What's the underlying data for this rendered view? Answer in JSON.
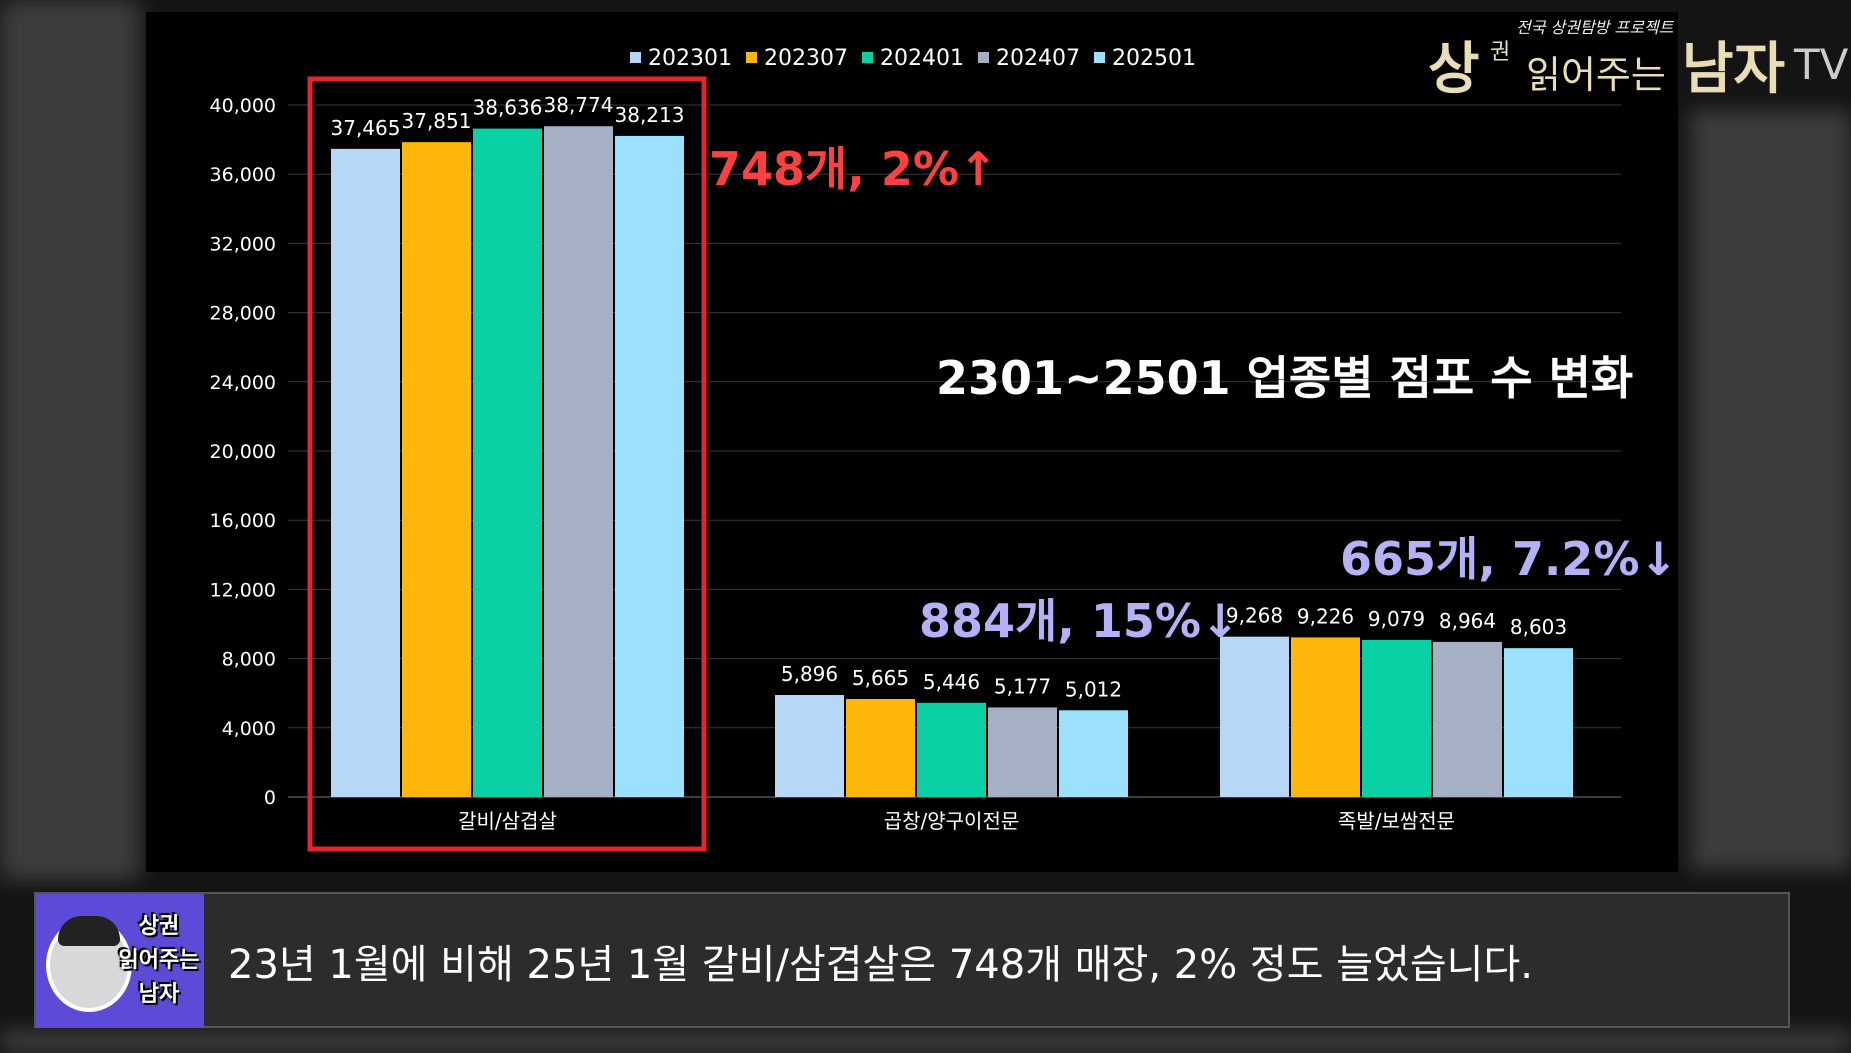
{
  "logo": {
    "tagline": "전국 상권탐방 프로젝트",
    "word1": "상",
    "word1_small": "권",
    "middle": "읽어주는",
    "word2": "남자",
    "suffix": "TV"
  },
  "subtitle_bar": {
    "avatar_label_lines": [
      "상권",
      "읽어주는",
      "남자"
    ],
    "text": "23년 1월에 비해 25년 1월 갈비/삼겹살은 748개 매장, 2% 정도 늘었습니다."
  },
  "chart_data": {
    "type": "bar",
    "title": "",
    "categories": [
      "갈비/삼겹살",
      "곱창/양구이전문",
      "족발/보쌈전문"
    ],
    "series": [
      {
        "name": "202301",
        "color": "#b6d7f5",
        "values": [
          37465,
          5896,
          9268
        ]
      },
      {
        "name": "202307",
        "color": "#ffb60a",
        "values": [
          37851,
          5665,
          9226
        ]
      },
      {
        "name": "202401",
        "color": "#0ad1a3",
        "values": [
          38636,
          5446,
          9079
        ]
      },
      {
        "name": "202407",
        "color": "#a6b0c4",
        "values": [
          38774,
          5177,
          8964
        ]
      },
      {
        "name": "202501",
        "color": "#9be1fb",
        "values": [
          38213,
          5012,
          8603
        ]
      }
    ],
    "ylim": [
      0,
      40000
    ],
    "yticks": [
      0,
      4000,
      8000,
      12000,
      16000,
      20000,
      24000,
      28000,
      32000,
      36000,
      40000
    ],
    "yticks_labels": [
      "0",
      "4,000",
      "8,000",
      "12,000",
      "16,000",
      "20,000",
      "24,000",
      "28,000",
      "32,000",
      "36,000",
      "40,000"
    ],
    "data_labels": [
      [
        "37,465",
        "37,851",
        "38,636",
        "38,774",
        "38,213"
      ],
      [
        "5,896",
        "5,665",
        "5,446",
        "5,177",
        "5,012"
      ],
      [
        "9,268",
        "9,226",
        "9,079",
        "8,964",
        "8,603"
      ]
    ],
    "grid": true,
    "legend": "top",
    "highlight_category": "갈비/삼겹살",
    "highlight_color": "#e8232b",
    "annotations": [
      {
        "text": "748개, 2%↑",
        "color": "#ff4040",
        "near_category": "갈비/삼겹살"
      },
      {
        "text": "2301~2501 업종별 점포 수 변화",
        "color": "#ffffff",
        "near_category": "곱창/양구이전문"
      },
      {
        "text": "884개, 15%↓",
        "color": "#b4b1f7",
        "near_category": "곱창/양구이전문"
      },
      {
        "text": "665개, 7.2%↓",
        "color": "#b4b1f7",
        "near_category": "족발/보쌈전문"
      }
    ]
  }
}
